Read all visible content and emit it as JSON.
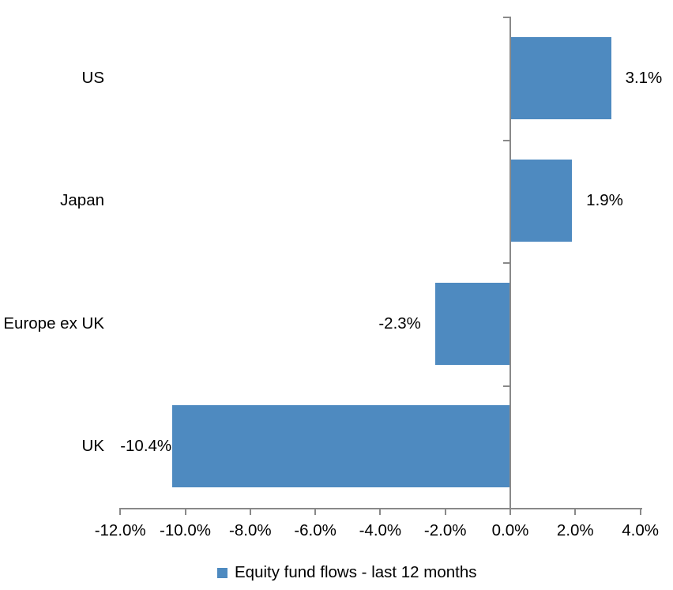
{
  "chart_data": {
    "type": "bar",
    "orientation": "horizontal",
    "title": "",
    "xlabel": "",
    "ylabel": "",
    "categories": [
      "US",
      "Japan",
      "Europe ex UK",
      "UK"
    ],
    "values": [
      3.1,
      1.9,
      -2.3,
      -10.4
    ],
    "data_labels": [
      "3.1%",
      "1.9%",
      "-2.3%",
      "-10.4%"
    ],
    "series_name": "Equity fund flows - last 12 months",
    "xlim": [
      -12,
      4
    ],
    "x_tick_step": 2,
    "x_tick_labels": [
      "-12.0%",
      "-10.0%",
      "-8.0%",
      "-6.0%",
      "-4.0%",
      "-2.0%",
      "0.0%",
      "2.0%",
      "4.0%"
    ],
    "grid": false,
    "legend_position": "bottom",
    "colors": {
      "bar": "#4E8AC0",
      "axis": "#898989",
      "text": "#000000",
      "background": "#FFFFFF"
    }
  }
}
